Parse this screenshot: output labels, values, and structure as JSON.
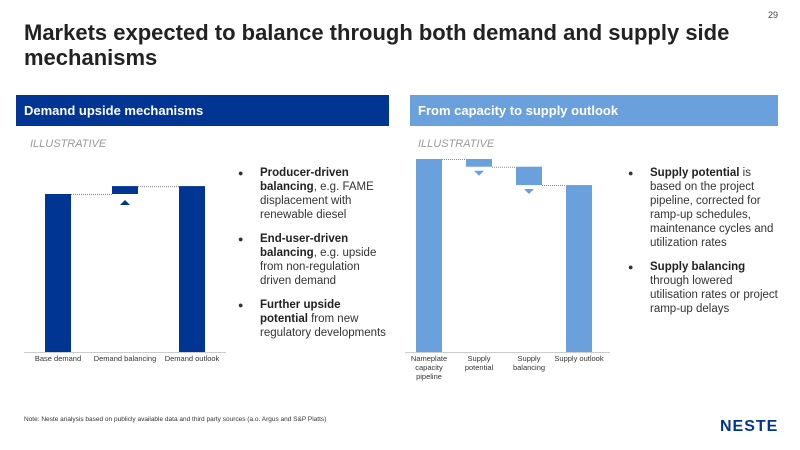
{
  "page_number": "29",
  "title": "Markets expected to balance through both demand and supply side mechanisms",
  "left": {
    "header": "Demand upside mechanisms",
    "tag": "ILLUSTRATIVE",
    "bullets": [
      {
        "bold": "Producer-driven balancing",
        "text": ", e.g. FAME displacement with renewable diesel"
      },
      {
        "bold": "End-user-driven balancing",
        "text": ", e.g. upside from non-regulation driven demand"
      },
      {
        "bold": "Further upside potential",
        "text": " from new regulatory developments"
      }
    ]
  },
  "right": {
    "header": "From capacity to supply outlook",
    "tag": "ILLUSTRATIVE",
    "bullets": [
      {
        "bold": "Supply potential",
        "text": " is based on the project pipeline, corrected for ramp-up schedules, maintenance cycles and utilization rates"
      },
      {
        "bold": "Supply balancing",
        "text": " through lowered utilisation rates or project ramp-up delays"
      }
    ]
  },
  "chart_data": [
    {
      "type": "bar",
      "subtype": "waterfall",
      "color": "#003594",
      "categories": [
        "Base demand",
        "Demand balancing",
        "Demand outlook"
      ],
      "values": [
        100,
        5,
        105
      ],
      "kinds": [
        "total",
        "delta",
        "total"
      ]
    },
    {
      "type": "bar",
      "subtype": "waterfall",
      "color": "#6aa1dc",
      "categories": [
        "Nameplate capacity pipeline",
        "Supply potential",
        "Supply balancing",
        "Supply outlook"
      ],
      "values": [
        100,
        -4,
        -9.5,
        86.5
      ],
      "kinds": [
        "total",
        "delta",
        "delta",
        "total"
      ]
    }
  ],
  "note": "Note: Neste analysis based on publicly available data and third party sources (a.o. Argus and S&P Platts)",
  "logo": "NESTE"
}
